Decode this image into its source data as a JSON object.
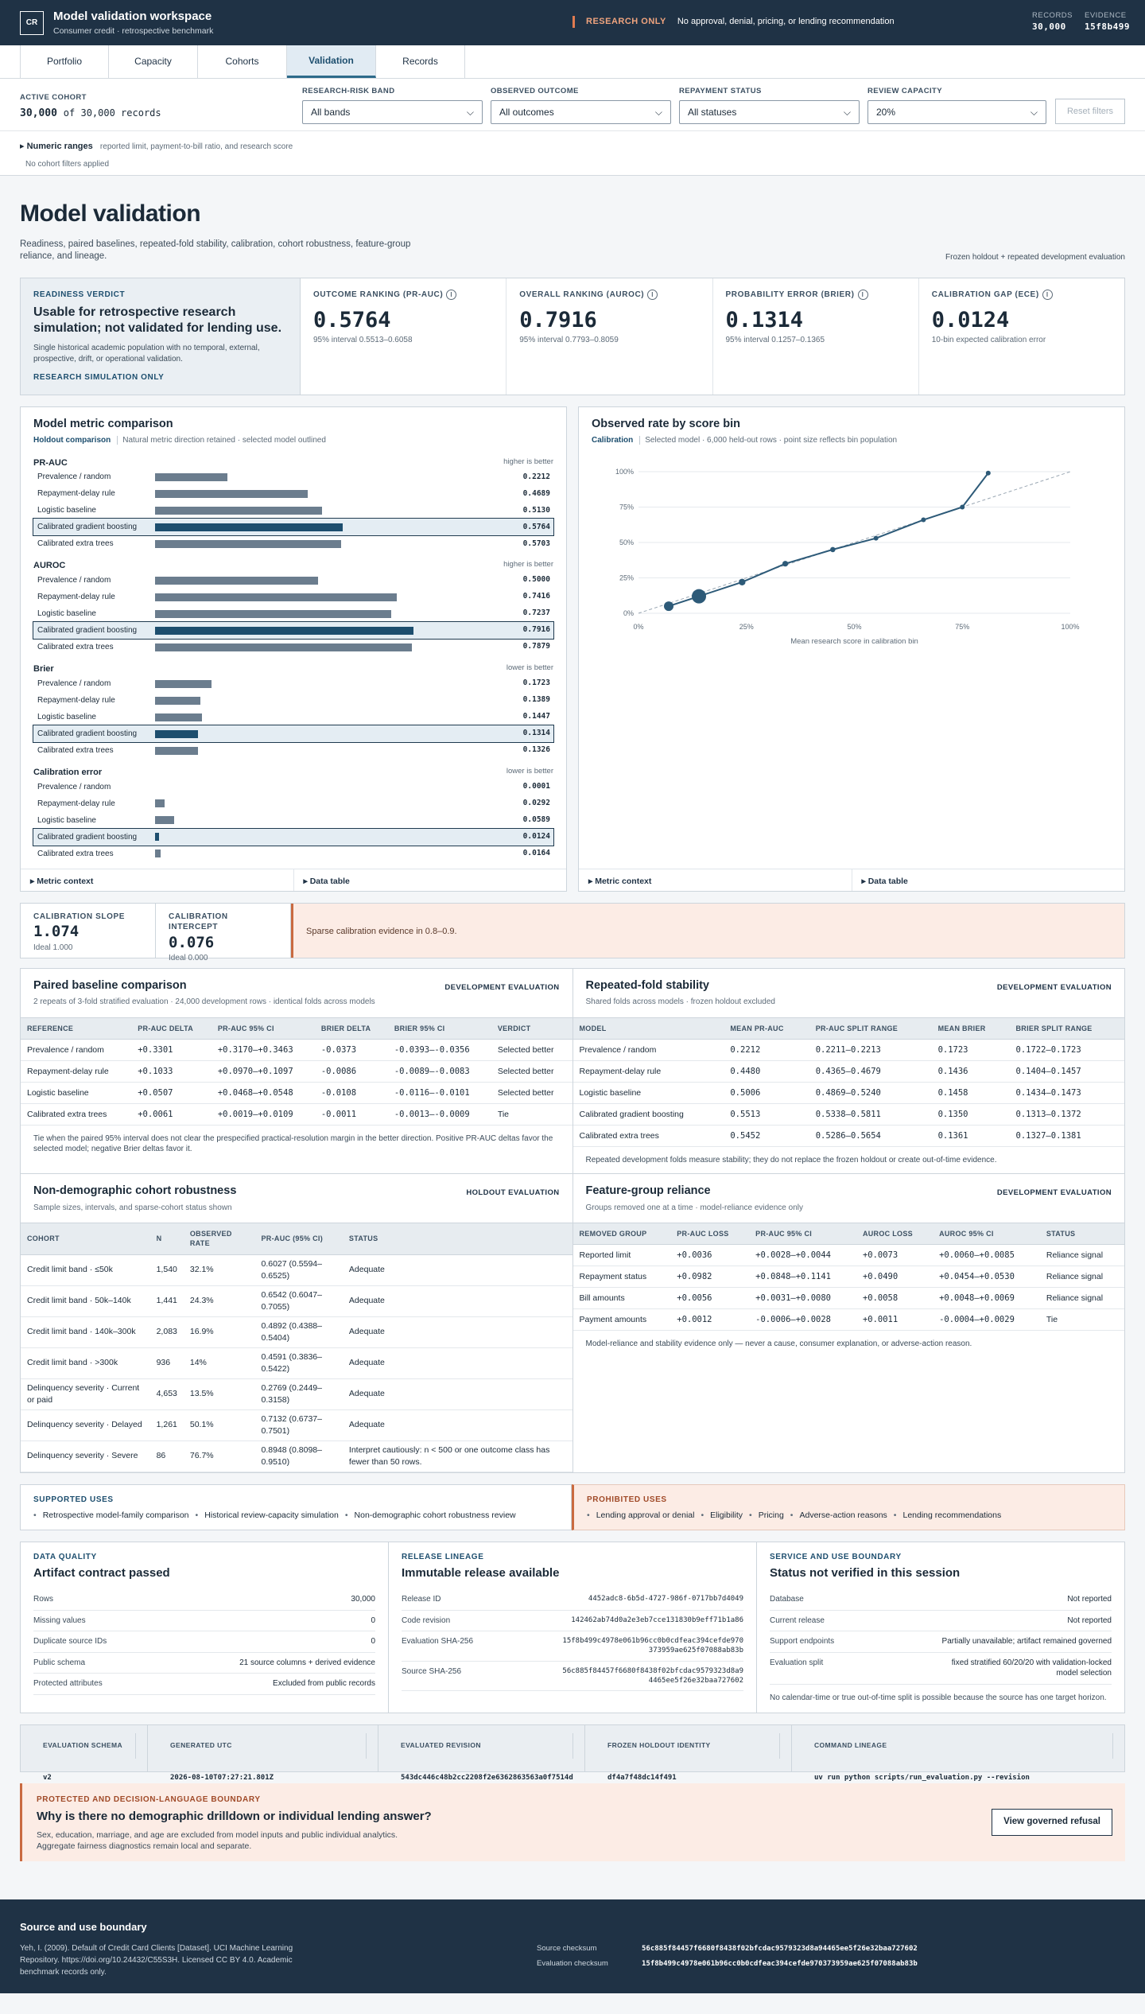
{
  "header": {
    "logo": "CR",
    "title": "Model validation workspace",
    "subtitle": "Consumer credit · retrospective benchmark",
    "notice_tag": "RESEARCH ONLY",
    "notice_text": "No approval, denial, pricing, or lending recommendation",
    "records_label": "RECORDS",
    "records_value": "30,000",
    "evidence_label": "EVIDENCE",
    "evidence_value": "15f8b499"
  },
  "tabs": [
    "Portfolio",
    "Capacity",
    "Cohorts",
    "Validation",
    "Records"
  ],
  "filters": {
    "cohort_label": "ACTIVE COHORT",
    "cohort_value": "30,000",
    "cohort_suffix": "of 30,000 records",
    "risk_label": "RESEARCH-RISK BAND",
    "risk_value": "All bands",
    "outcome_label": "OBSERVED OUTCOME",
    "outcome_value": "All outcomes",
    "repay_label": "REPAYMENT STATUS",
    "repay_value": "All statuses",
    "capacity_label": "REVIEW CAPACITY",
    "capacity_value": "20%",
    "reset": "Reset filters",
    "ranges_title": "Numeric ranges",
    "ranges_text": "reported limit, payment-to-bill ratio, and research score",
    "no_filters": "No cohort filters applied"
  },
  "page": {
    "title": "Model validation",
    "lead": "Readiness, paired baselines, repeated-fold stability, calibration, cohort robustness, feature-group reliance, and lineage.",
    "mode": "Frozen holdout + repeated development evaluation"
  },
  "verdict": {
    "label": "READINESS VERDICT",
    "title": "Usable for retrospective research simulation; not validated for lending use.",
    "body": "Single historical academic population with no temporal, external, prospective, drift, or operational validation.",
    "tag": "RESEARCH SIMULATION ONLY"
  },
  "kpis": [
    {
      "label": "OUTCOME RANKING (PR-AUC)",
      "value": "0.5764",
      "ci": "95% interval 0.5513–0.6058"
    },
    {
      "label": "OVERALL RANKING (AUROC)",
      "value": "0.7916",
      "ci": "95% interval 0.7793–0.8059"
    },
    {
      "label": "PROBABILITY ERROR (BRIER)",
      "value": "0.1314",
      "ci": "95% interval 0.1257–0.1365"
    },
    {
      "label": "CALIBRATION GAP (ECE)",
      "value": "0.0124",
      "ci": "10-bin expected calibration error"
    }
  ],
  "metric_panel": {
    "title": "Model metric comparison",
    "tag": "Holdout comparison",
    "meta": "Natural metric direction retained · selected model outlined",
    "context": "Metric context",
    "table": "Data table"
  },
  "metric_groups": [
    {
      "name": "PR-AUC",
      "dir": "higher is better",
      "max": 1,
      "rows": [
        [
          "Prevalence / random",
          "0.2212"
        ],
        [
          "Repayment-delay rule",
          "0.4689"
        ],
        [
          "Logistic baseline",
          "0.5130"
        ],
        [
          "Calibrated gradient boosting",
          "0.5764"
        ],
        [
          "Calibrated extra trees",
          "0.5703"
        ]
      ]
    },
    {
      "name": "AUROC",
      "dir": "higher is better",
      "max": 1,
      "rows": [
        [
          "Prevalence / random",
          "0.5000"
        ],
        [
          "Repayment-delay rule",
          "0.7416"
        ],
        [
          "Logistic baseline",
          "0.7237"
        ],
        [
          "Calibrated gradient boosting",
          "0.7916"
        ],
        [
          "Calibrated extra trees",
          "0.7879"
        ]
      ]
    },
    {
      "name": "Brier",
      "dir": "lower is better",
      "max": 1,
      "rows": [
        [
          "Prevalence / random",
          "0.1723"
        ],
        [
          "Repayment-delay rule",
          "0.1389"
        ],
        [
          "Logistic baseline",
          "0.1447"
        ],
        [
          "Calibrated gradient boosting",
          "0.1314"
        ],
        [
          "Calibrated extra trees",
          "0.1326"
        ]
      ]
    },
    {
      "name": "Calibration error",
      "dir": "lower is better",
      "max": 1,
      "rows": [
        [
          "Prevalence / random",
          "0.0001"
        ],
        [
          "Repayment-delay rule",
          "0.0292"
        ],
        [
          "Logistic baseline",
          "0.0589"
        ],
        [
          "Calibrated gradient boosting",
          "0.0124"
        ],
        [
          "Calibrated extra trees",
          "0.0164"
        ]
      ]
    }
  ],
  "calib_panel": {
    "title": "Observed rate by score bin",
    "tag": "Calibration",
    "meta": "Selected model · 6,000 held-out rows · point size reflects bin population",
    "xlabel": "Mean research score in calibration bin",
    "context": "Metric context",
    "table": "Data table"
  },
  "chart_data": {
    "type": "scatter",
    "xlabel": "Mean research score in calibration bin",
    "xlim": [
      0,
      1
    ],
    "ylim": [
      0,
      1
    ],
    "x_ticks": [
      "0%",
      "25%",
      "50%",
      "75%",
      "100%"
    ],
    "y_ticks": [
      "0%",
      "25%",
      "50%",
      "75%",
      "100%"
    ],
    "x": [
      0.07,
      0.14,
      0.24,
      0.34,
      0.45,
      0.55,
      0.66,
      0.75,
      0.81
    ],
    "y": [
      0.05,
      0.12,
      0.22,
      0.35,
      0.45,
      0.53,
      0.66,
      0.75,
      0.99
    ],
    "size": [
      2,
      3,
      1.4,
      1.2,
      1.1,
      1,
      1,
      1,
      1
    ]
  },
  "calib_strip": {
    "slope_label": "CALIBRATION SLOPE",
    "slope": "1.074",
    "slope_ideal": "Ideal 1.000",
    "int_label": "CALIBRATION INTERCEPT",
    "int": "0.076",
    "int_ideal": "Ideal 0.000",
    "warn": "Sparse calibration evidence in 0.8–0.9."
  },
  "paired": {
    "title": "Paired baseline comparison",
    "meta": "2 repeats of 3-fold stratified evaluation · 24,000 development rows · identical folds across models",
    "badge": "DEVELOPMENT EVALUATION",
    "cols": [
      "REFERENCE",
      "PR-AUC DELTA",
      "PR-AUC 95% CI",
      "BRIER DELTA",
      "BRIER 95% CI",
      "VERDICT"
    ],
    "rows": [
      [
        "Prevalence / random",
        "+0.3301",
        "+0.3170–+0.3463",
        "-0.0373",
        "-0.0393–-0.0356",
        "Selected better"
      ],
      [
        "Repayment-delay rule",
        "+0.1033",
        "+0.0970–+0.1097",
        "-0.0086",
        "-0.0089–-0.0083",
        "Selected better"
      ],
      [
        "Logistic baseline",
        "+0.0507",
        "+0.0468–+0.0548",
        "-0.0108",
        "-0.0116–-0.0101",
        "Selected better"
      ],
      [
        "Calibrated extra trees",
        "+0.0061",
        "+0.0019–+0.0109",
        "-0.0011",
        "-0.0013–-0.0009",
        "Tie"
      ]
    ],
    "note": "Tie when the paired 95% interval does not clear the prespecified practical-resolution margin in the better direction. Positive PR-AUC deltas favor the selected model; negative Brier deltas favor it."
  },
  "folds": {
    "title": "Repeated-fold stability",
    "meta": "Shared folds across models · frozen holdout excluded",
    "badge": "DEVELOPMENT EVALUATION",
    "cols": [
      "MODEL",
      "MEAN PR-AUC",
      "PR-AUC SPLIT RANGE",
      "MEAN BRIER",
      "BRIER SPLIT RANGE"
    ],
    "rows": [
      [
        "Prevalence / random",
        "0.2212",
        "0.2211–0.2213",
        "0.1723",
        "0.1722–0.1723"
      ],
      [
        "Repayment-delay rule",
        "0.4480",
        "0.4365–0.4679",
        "0.1436",
        "0.1404–0.1457"
      ],
      [
        "Logistic baseline",
        "0.5006",
        "0.4869–0.5240",
        "0.1458",
        "0.1434–0.1473"
      ],
      [
        "Calibrated gradient boosting",
        "0.5513",
        "0.5338–0.5811",
        "0.1350",
        "0.1313–0.1372"
      ],
      [
        "Calibrated extra trees",
        "0.5452",
        "0.5286–0.5654",
        "0.1361",
        "0.1327–0.1381"
      ]
    ],
    "note": "Repeated development folds measure stability; they do not replace the frozen holdout or create out-of-time evidence."
  },
  "cohorts": {
    "title": "Non-demographic cohort robustness",
    "meta": "Sample sizes, intervals, and sparse-cohort status shown",
    "badge": "HOLDOUT EVALUATION",
    "cols": [
      "COHORT",
      "N",
      "OBSERVED RATE",
      "PR-AUC (95% CI)",
      "STATUS"
    ],
    "rows": [
      [
        "Credit limit band · ≤50k",
        "1,540",
        "32.1%",
        "0.6027 (0.5594–0.6525)",
        "Adequate"
      ],
      [
        "Credit limit band · 50k–140k",
        "1,441",
        "24.3%",
        "0.6542 (0.6047–0.7055)",
        "Adequate"
      ],
      [
        "Credit limit band · 140k–300k",
        "2,083",
        "16.9%",
        "0.4892 (0.4388–0.5404)",
        "Adequate"
      ],
      [
        "Credit limit band · >300k",
        "936",
        "14%",
        "0.4591 (0.3836–0.5422)",
        "Adequate"
      ],
      [
        "Delinquency severity · Current or paid",
        "4,653",
        "13.5%",
        "0.2769 (0.2449–0.3158)",
        "Adequate"
      ],
      [
        "Delinquency severity · Delayed",
        "1,261",
        "50.1%",
        "0.7132 (0.6737–0.7501)",
        "Adequate"
      ],
      [
        "Delinquency severity · Severe",
        "86",
        "76.7%",
        "0.8948 (0.8098–0.9510)",
        "Interpret cautiously: n < 500 or one outcome class has fewer than 50 rows."
      ]
    ]
  },
  "features": {
    "title": "Feature-group reliance",
    "meta": "Groups removed one at a time · model-reliance evidence only",
    "badge": "DEVELOPMENT EVALUATION",
    "cols": [
      "REMOVED GROUP",
      "PR-AUC LOSS",
      "PR-AUC 95% CI",
      "AUROC LOSS",
      "AUROC 95% CI",
      "STATUS"
    ],
    "rows": [
      [
        "Reported limit",
        "+0.0036",
        "+0.0028–+0.0044",
        "+0.0073",
        "+0.0060–+0.0085",
        "Reliance signal"
      ],
      [
        "Repayment status",
        "+0.0982",
        "+0.0848–+0.1141",
        "+0.0490",
        "+0.0454–+0.0530",
        "Reliance signal"
      ],
      [
        "Bill amounts",
        "+0.0056",
        "+0.0031–+0.0080",
        "+0.0058",
        "+0.0048–+0.0069",
        "Reliance signal"
      ],
      [
        "Payment amounts",
        "+0.0012",
        "-0.0006–+0.0028",
        "+0.0011",
        "-0.0004–+0.0029",
        "Tie"
      ]
    ],
    "note": "Model-reliance and stability evidence only — never a cause, consumer explanation, or adverse-action reason."
  },
  "uses": {
    "supported_label": "SUPPORTED USES",
    "supported": [
      "Retrospective model-family comparison",
      "Historical review-capacity simulation",
      "Non-demographic cohort robustness review"
    ],
    "prohibited_label": "PROHIBITED USES",
    "prohibited": [
      "Lending approval or denial",
      "Eligibility",
      "Pricing",
      "Adverse-action reasons",
      "Lending recommendations"
    ]
  },
  "quality": {
    "label": "DATA QUALITY",
    "title": "Artifact contract passed",
    "rows": [
      [
        "Rows",
        "30,000"
      ],
      [
        "Missing values",
        "0"
      ],
      [
        "Duplicate source IDs",
        "0"
      ],
      [
        "Public schema",
        "21 source columns + derived evidence"
      ],
      [
        "Protected attributes",
        "Excluded from public records"
      ]
    ]
  },
  "release": {
    "label": "RELEASE LINEAGE",
    "title": "Immutable release available",
    "rows": [
      [
        "Release ID",
        "4452adc8-6b5d-4727-986f-0717bb7d4049"
      ],
      [
        "Code revision",
        "142462ab74d0a2e3eb7cce131830b9eff71b1a86"
      ],
      [
        "Evaluation SHA-256",
        "15f8b499c4978e061b96cc0b0cdfeac394cefde970373959ae625f07088ab83b"
      ],
      [
        "Source SHA-256",
        "56c885f84457f6680f8438f02bfcdac9579323d8a94465ee5f26e32baa727602"
      ]
    ]
  },
  "service": {
    "label": "SERVICE AND USE BOUNDARY",
    "title": "Status not verified in this session",
    "rows": [
      [
        "Database",
        "Not reported"
      ],
      [
        "Current release",
        "Not reported"
      ],
      [
        "Support endpoints",
        "Partially unavailable; artifact remained governed"
      ],
      [
        "Evaluation split",
        "fixed stratified 60/20/20 with validation-locked model selection"
      ]
    ],
    "note": "No calendar-time or true out-of-time split is possible because the source has one target horizon."
  },
  "meta": [
    [
      "EVALUATION SCHEMA",
      "v2"
    ],
    [
      "GENERATED UTC",
      "2026-08-10T07:27:21.801Z"
    ],
    [
      "EVALUATED REVISION",
      "543dc446c48b2cc2208f2e6362863563a0f7514d"
    ],
    [
      "FROZEN HOLDOUT IDENTITY",
      "df4a7f48dc14f491"
    ],
    [
      "COMMAND LINEAGE",
      "uv run python scripts/run_evaluation.py --revision 543dc446c48b2cc2208f2e6362863563a0f7514d"
    ]
  ],
  "boundary": {
    "label": "PROTECTED AND DECISION-LANGUAGE BOUNDARY",
    "title": "Why is there no demographic drilldown or individual lending answer?",
    "body": "Sex, education, marriage, and age are excluded from model inputs and public individual analytics. Aggregate fairness diagnostics remain local and separate.",
    "button": "View governed refusal"
  },
  "footer": {
    "title": "Source and use boundary",
    "citation": "Yeh, I. (2009). Default of Credit Card Clients [Dataset]. UCI Machine Learning Repository. https://doi.org/10.24432/C55S3H. Licensed CC BY 4.0. Academic benchmark records only.",
    "src_label": "Source checksum",
    "src_value": "56c885f84457f6680f8438f02bfcdac9579323d8a94465ee5f26e32baa727602",
    "eval_label": "Evaluation checksum",
    "eval_value": "15f8b499c4978e061b96cc0b0cdfeac394cefde970373959ae625f07088ab83b"
  }
}
